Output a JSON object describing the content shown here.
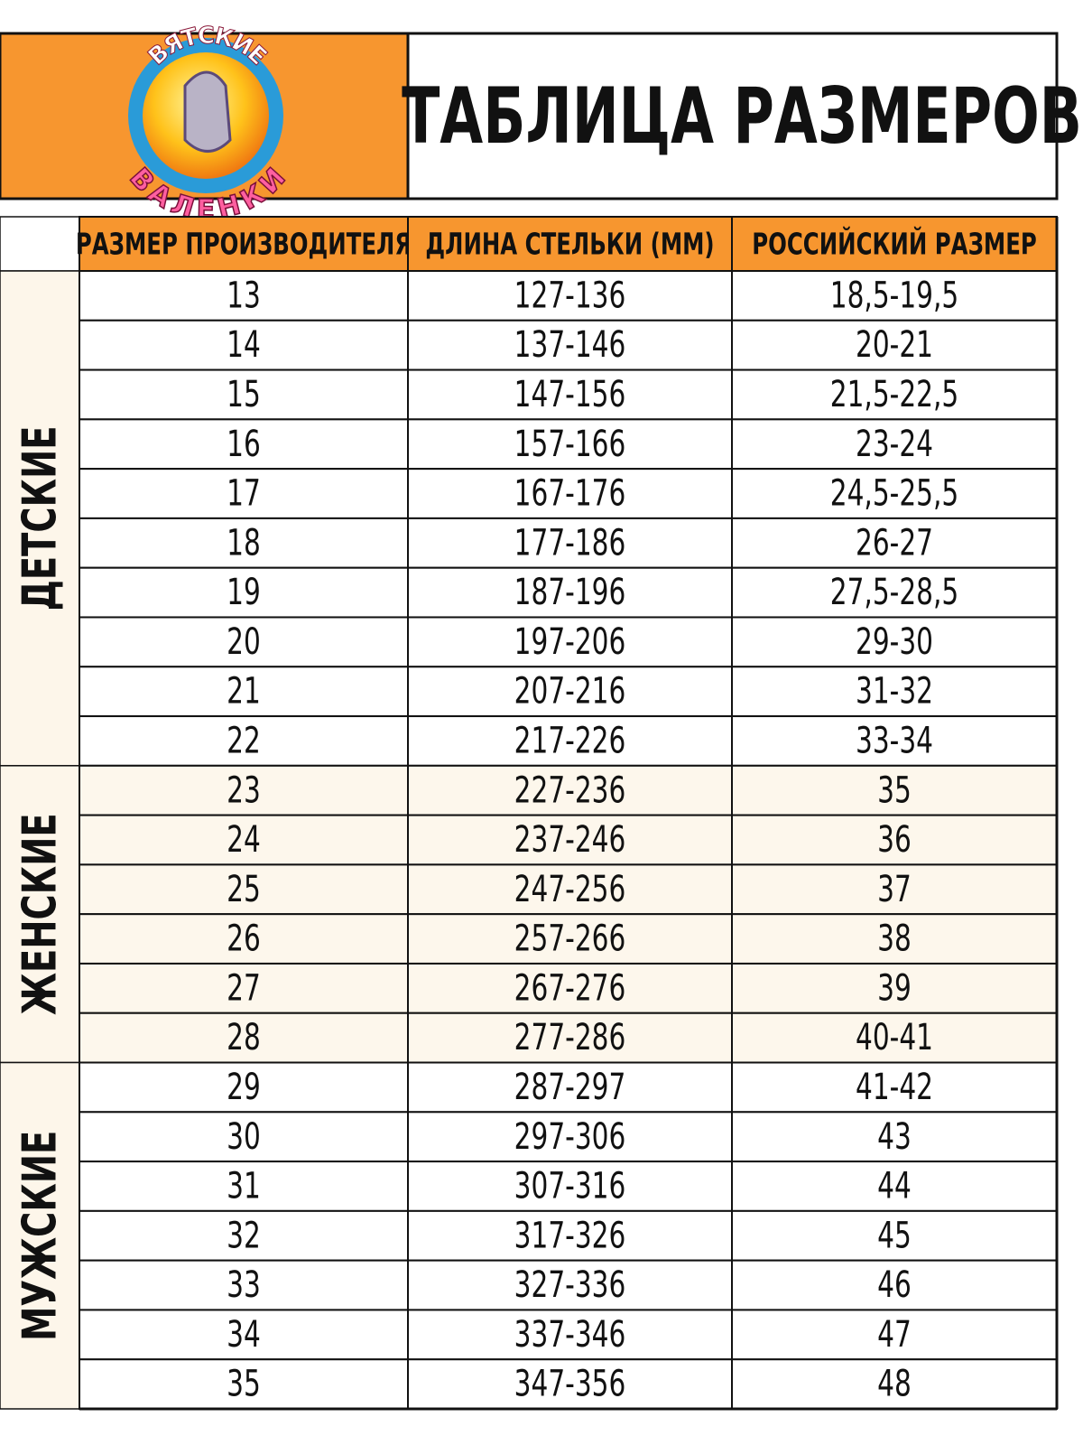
{
  "header": {
    "logo": {
      "top_text": "ВЯТСКИЕ",
      "bottom_text": "ВАЛЕНКИ"
    },
    "title": "ТАБЛИЦА РАЗМЕРОВ"
  },
  "table": {
    "columns": [
      "РАЗМЕР ПРОИЗВОДИТЕЛЯ",
      "ДЛИНА СТЕЛЬКИ (ММ)",
      "РОССИЙСКИЙ РАЗМЕР"
    ],
    "groups": [
      {
        "label": "ДЕТСКИЕ",
        "rows": [
          [
            "13",
            "127-136",
            "18,5-19,5"
          ],
          [
            "14",
            "137-146",
            "20-21"
          ],
          [
            "15",
            "147-156",
            "21,5-22,5"
          ],
          [
            "16",
            "157-166",
            "23-24"
          ],
          [
            "17",
            "167-176",
            "24,5-25,5"
          ],
          [
            "18",
            "177-186",
            "26-27"
          ],
          [
            "19",
            "187-196",
            "27,5-28,5"
          ],
          [
            "20",
            "197-206",
            "29-30"
          ],
          [
            "21",
            "207-216",
            "31-32"
          ],
          [
            "22",
            "217-226",
            "33-34"
          ]
        ]
      },
      {
        "label": "ЖЕНСКИЕ",
        "rows": [
          [
            "23",
            "227-236",
            "35"
          ],
          [
            "24",
            "237-246",
            "36"
          ],
          [
            "25",
            "247-256",
            "37"
          ],
          [
            "26",
            "257-266",
            "38"
          ],
          [
            "27",
            "267-276",
            "39"
          ],
          [
            "28",
            "277-286",
            "40-41"
          ]
        ]
      },
      {
        "label": "МУЖСКИЕ",
        "rows": [
          [
            "29",
            "287-297",
            "41-42"
          ],
          [
            "30",
            "297-306",
            "43"
          ],
          [
            "31",
            "307-316",
            "44"
          ],
          [
            "32",
            "317-326",
            "45"
          ],
          [
            "33",
            "327-336",
            "46"
          ],
          [
            "34",
            "337-346",
            "47"
          ],
          [
            "35",
            "347-356",
            "48"
          ]
        ]
      }
    ]
  }
}
